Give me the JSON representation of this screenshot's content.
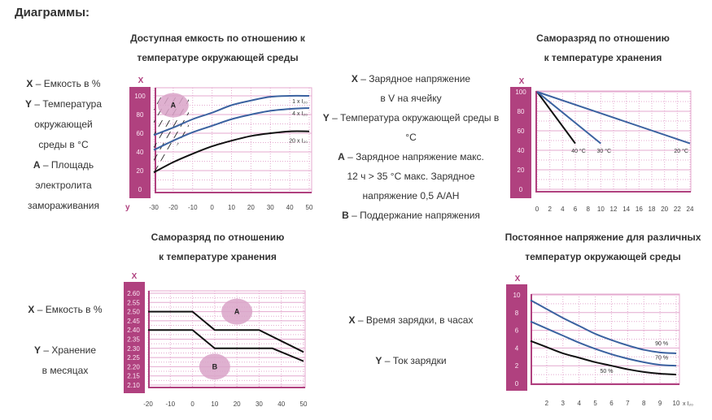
{
  "heading": "Диаграммы:",
  "sections": [
    {
      "title_lines": [
        "Доступная емкость по отношению к",
        "температуре окружающей среды"
      ],
      "legend": [
        {
          "key": "X",
          "text": " – Емкость в %"
        },
        {
          "key": "Y",
          "text": " – Температура"
        },
        {
          "key": "",
          "text": "окружающей"
        },
        {
          "key": "",
          "text": "среды в °C"
        },
        {
          "key": "A",
          "text": " – Площадь"
        },
        {
          "key": "",
          "text": "электролита"
        },
        {
          "key": "",
          "text": "замораживания"
        }
      ]
    },
    {
      "title_lines": [
        "Саморазряд по отношению",
        "к температуре хранения"
      ],
      "legend": [
        {
          "key": "X",
          "text": " – Зарядное напряжение"
        },
        {
          "key": "",
          "text": "в V на ячейку"
        },
        {
          "key": "Y",
          "text": " – Температура окружающей среды в"
        },
        {
          "key": "",
          "text": "°C"
        },
        {
          "key": "A",
          "text": " – Зарядное напряжение макс."
        },
        {
          "key": "",
          "text": "12 ч > 35 °C макс. Зарядное"
        },
        {
          "key": "",
          "text": "напряжение 0,5 A/AH"
        },
        {
          "key": "B",
          "text": " – Поддержание напряжения"
        }
      ]
    },
    {
      "title_lines": [
        "Саморазряд по отношению",
        "к температуре хранения"
      ],
      "legend": [
        {
          "key": "X",
          "text": " – Емкость в %"
        },
        {
          "key": "Y",
          "text": " – Хранение"
        },
        {
          "key": "",
          "text": "в месяцах"
        }
      ]
    },
    {
      "title_lines": [
        "Постоянное напряжение для различных",
        "температур окружающей среды"
      ],
      "legend": [
        {
          "key": "X",
          "text": " – Время зарядки, в часах"
        },
        {
          "key": "Y",
          "text": " – Ток зарядки"
        }
      ]
    }
  ],
  "colors": {
    "axis_bar": "#b0417f",
    "grid": "#e4a9cf",
    "blue": "#3b62a0",
    "black": "#111111",
    "ellipse": "#d9a3c8"
  },
  "chart_data": [
    {
      "type": "line",
      "xlabel": "y",
      "ylabel": "X",
      "xlim": [
        -30,
        50
      ],
      "ylim": [
        0,
        100
      ],
      "x_ticks": [
        "-30",
        "-20",
        "-10",
        "0",
        "10",
        "20",
        "30",
        "40",
        "50"
      ],
      "y_ticks": [
        "0",
        "20",
        "40",
        "60",
        "80",
        "100"
      ],
      "grid": true,
      "x": [
        -30,
        -20,
        -10,
        0,
        10,
        20,
        30,
        40,
        50
      ],
      "series": [
        {
          "name": "1 x I₂₀",
          "color": "blue",
          "values": [
            58,
            66,
            75,
            82,
            90,
            95,
            99,
            100,
            100
          ]
        },
        {
          "name": "4 x I₂₀",
          "color": "blue",
          "values": [
            42,
            52,
            61,
            68,
            75,
            80,
            84,
            86,
            87
          ]
        },
        {
          "name": "20 x I₂₀",
          "color": "black",
          "values": [
            18,
            29,
            38,
            46,
            52,
            57,
            60,
            62,
            62
          ]
        }
      ],
      "annotations": [
        {
          "label": "A",
          "x": -20,
          "y": 90,
          "shape": "ellipse",
          "hatched_region": true
        }
      ]
    },
    {
      "type": "line",
      "ylabel": "X",
      "xlim": [
        0,
        24
      ],
      "ylim": [
        0,
        100
      ],
      "x_ticks": [
        "0",
        "2",
        "4",
        "6",
        "8",
        "10",
        "12",
        "14",
        "16",
        "18",
        "20",
        "22",
        "24"
      ],
      "y_ticks": [
        "0",
        "20",
        "40",
        "60",
        "80",
        "100"
      ],
      "grid": true,
      "series": [
        {
          "name": "40 °C",
          "color": "black",
          "x": [
            0,
            6
          ],
          "values": [
            100,
            47
          ]
        },
        {
          "name": "30 °C",
          "color": "blue",
          "x": [
            0,
            10
          ],
          "values": [
            100,
            47
          ]
        },
        {
          "name": "20 °C",
          "color": "blue",
          "x": [
            0,
            24
          ],
          "values": [
            100,
            47
          ]
        }
      ]
    },
    {
      "type": "line",
      "ylabel": "X",
      "xlim": [
        -20,
        50
      ],
      "ylim": [
        2.1,
        2.6
      ],
      "x_ticks": [
        "-20",
        "-10",
        "0",
        "10",
        "20",
        "30",
        "40",
        "50"
      ],
      "y_ticks": [
        "2.10",
        "2.15",
        "2.20",
        "2.25",
        "2.30",
        "2.35",
        "2.40",
        "2.45",
        "2.50",
        "2.55",
        "2.60"
      ],
      "grid": true,
      "series": [
        {
          "color": "black",
          "x": [
            -20,
            0,
            10,
            30,
            50
          ],
          "values": [
            2.5,
            2.5,
            2.4,
            2.4,
            2.28
          ]
        },
        {
          "color": "black",
          "x": [
            -20,
            0,
            10,
            36,
            50
          ],
          "values": [
            2.4,
            2.4,
            2.3,
            2.3,
            2.23
          ]
        }
      ],
      "annotations": [
        {
          "label": "A",
          "x": 20,
          "y": 2.5,
          "shape": "ellipse"
        },
        {
          "label": "B",
          "x": 10,
          "y": 2.2,
          "shape": "ellipse"
        }
      ]
    },
    {
      "type": "line",
      "ylabel": "X",
      "xlim": [
        1,
        10
      ],
      "ylim": [
        0,
        10
      ],
      "x_ticks": [
        "2",
        "3",
        "4",
        "5",
        "6",
        "7",
        "8",
        "9",
        "10"
      ],
      "x_unit": "x I₂₀",
      "y_ticks": [
        "0",
        "2",
        "4",
        "6",
        "8",
        "10"
      ],
      "grid": true,
      "x": [
        1,
        2,
        3,
        4,
        5,
        6,
        7,
        8,
        9,
        10
      ],
      "series": [
        {
          "name": "90 %",
          "color": "blue",
          "values": [
            9.4,
            8.4,
            7.4,
            6.5,
            5.6,
            4.9,
            4.3,
            3.8,
            3.5,
            3.4
          ]
        },
        {
          "name": "70 %",
          "color": "blue",
          "values": [
            7.0,
            6.2,
            5.4,
            4.6,
            3.9,
            3.3,
            2.8,
            2.4,
            2.1,
            2.0
          ]
        },
        {
          "name": "50 %",
          "color": "black",
          "values": [
            4.8,
            4.1,
            3.4,
            2.9,
            2.4,
            2.0,
            1.6,
            1.3,
            1.1,
            1.0
          ]
        }
      ]
    }
  ]
}
